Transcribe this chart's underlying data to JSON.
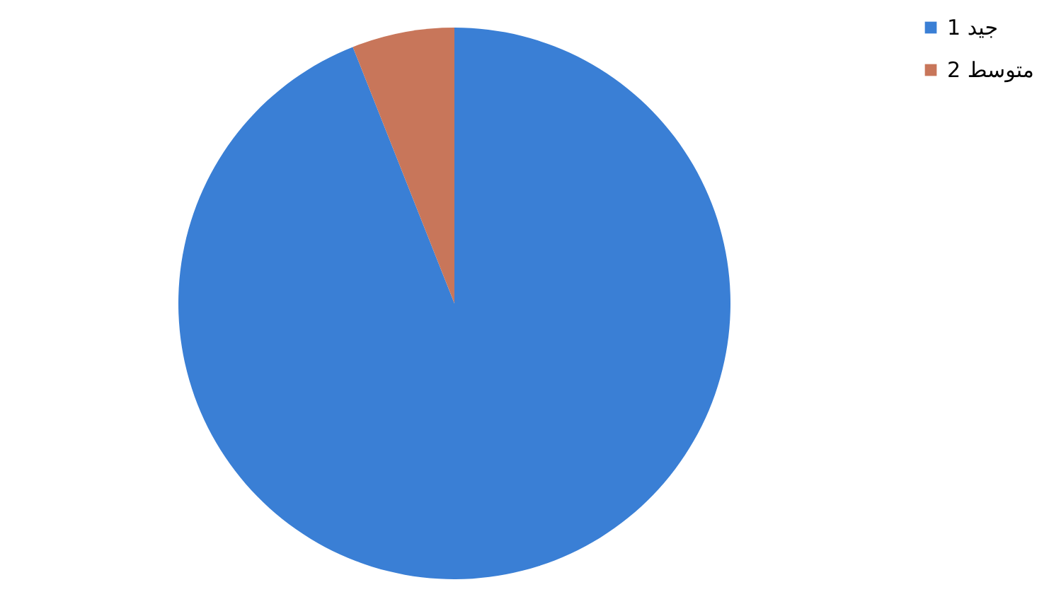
{
  "chart_data": {
    "type": "pie",
    "categories": [
      "1 جيد",
      "2 متوسط"
    ],
    "values": [
      94,
      6
    ],
    "colors": [
      "#3a7fd5",
      "#c8765a"
    ],
    "legend": "right"
  }
}
